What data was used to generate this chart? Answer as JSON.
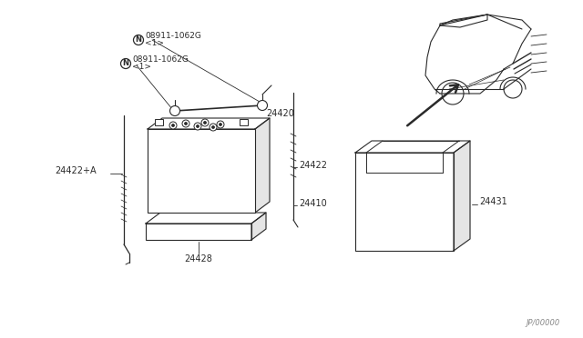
{
  "bg_color": "#ffffff",
  "line_color": "#2a2a2a",
  "fig_width": 6.4,
  "fig_height": 3.72,
  "watermark": "JP/00000",
  "label_24410": "24410",
  "label_24420": "24420",
  "label_24422": "24422",
  "label_24422a": "24422+A",
  "label_24428": "24428",
  "label_24431": "24431",
  "nut_code": "08911-1062G",
  "nut_qty": "<1>",
  "N": "N"
}
